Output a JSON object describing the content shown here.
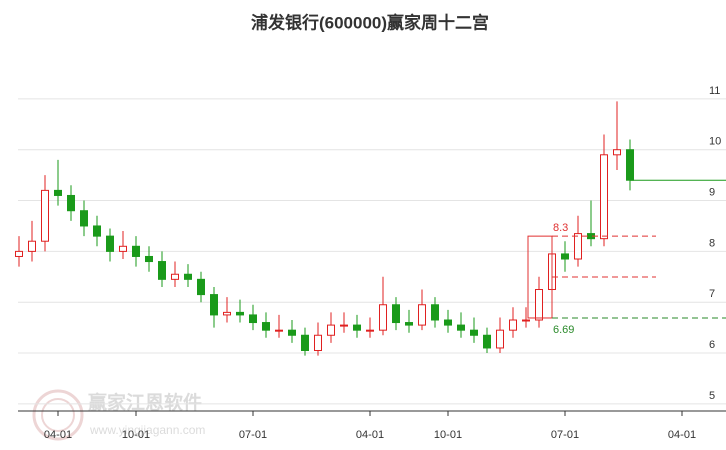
{
  "chart_data": {
    "type": "candlestick",
    "title": "浦发银行(600000)赢家周十二宫",
    "categories": [
      null,
      null,
      null,
      "04-01",
      null,
      null,
      null,
      null,
      null,
      "10-01",
      null,
      null,
      null,
      null,
      null,
      null,
      null,
      null,
      "07-01",
      null,
      null,
      null,
      null,
      null,
      null,
      null,
      null,
      "04-01",
      null,
      null,
      null,
      null,
      null,
      "10-01",
      null,
      null,
      null,
      null,
      null,
      null,
      null,
      null,
      "07-01",
      null,
      null,
      null,
      null,
      null,
      null,
      null,
      null,
      "04-01"
    ],
    "open": [
      7.9,
      8.0,
      8.2,
      9.2,
      9.1,
      8.8,
      8.5,
      8.3,
      8.0,
      8.1,
      7.9,
      7.8,
      7.45,
      7.55,
      7.45,
      7.15,
      6.75,
      6.8,
      6.75,
      6.6,
      6.45,
      6.45,
      6.35,
      6.05,
      6.35,
      6.55,
      6.55,
      6.45,
      6.45,
      6.95,
      6.6,
      6.55,
      6.95,
      6.65,
      6.55,
      6.45,
      6.35,
      6.1,
      6.45,
      6.65,
      6.65,
      7.25,
      7.95,
      7.85,
      8.35,
      8.25,
      9.9,
      10.0,
      null,
      null,
      null,
      null
    ],
    "high": [
      8.3,
      8.6,
      9.5,
      9.8,
      9.3,
      9.0,
      8.7,
      8.45,
      8.4,
      8.3,
      8.1,
      8.0,
      7.8,
      7.75,
      7.6,
      7.3,
      7.1,
      7.05,
      6.95,
      6.8,
      6.75,
      6.65,
      6.5,
      6.6,
      6.8,
      6.8,
      6.75,
      6.7,
      7.5,
      7.1,
      6.85,
      7.25,
      7.1,
      6.85,
      6.8,
      6.7,
      6.5,
      6.7,
      6.9,
      6.9,
      7.5,
      8.3,
      8.2,
      8.7,
      9.0,
      10.3,
      10.95,
      10.2,
      null,
      null,
      null,
      null
    ],
    "low": [
      7.7,
      7.8,
      8.0,
      8.9,
      8.6,
      8.3,
      8.1,
      7.8,
      7.85,
      7.7,
      7.6,
      7.3,
      7.3,
      7.3,
      7.0,
      6.5,
      6.6,
      6.6,
      6.45,
      6.3,
      6.3,
      6.2,
      5.95,
      5.95,
      6.2,
      6.4,
      6.3,
      6.3,
      6.35,
      6.45,
      6.4,
      6.45,
      6.5,
      6.4,
      6.3,
      6.2,
      6.0,
      6.0,
      6.3,
      6.5,
      6.5,
      7.1,
      7.6,
      7.7,
      8.1,
      8.1,
      9.6,
      9.2,
      null,
      null,
      null,
      null
    ],
    "close": [
      8.0,
      8.2,
      9.2,
      9.1,
      8.8,
      8.5,
      8.3,
      8.0,
      8.1,
      7.9,
      7.8,
      7.45,
      7.55,
      7.45,
      7.15,
      6.75,
      6.8,
      6.75,
      6.6,
      6.45,
      6.45,
      6.35,
      6.05,
      6.35,
      6.55,
      6.55,
      6.45,
      6.45,
      6.95,
      6.6,
      6.55,
      6.95,
      6.65,
      6.55,
      6.45,
      6.35,
      6.1,
      6.45,
      6.65,
      6.65,
      7.25,
      7.95,
      7.85,
      8.35,
      8.25,
      9.9,
      10.0,
      9.4,
      null,
      null,
      null,
      null
    ],
    "up_color": "#e02020",
    "down_color": "#1a9a1a",
    "ylim": [
      4.86,
      12.06
    ],
    "yticks": [
      5,
      6,
      7,
      8,
      9,
      10,
      11
    ],
    "grid": true,
    "levels": [
      {
        "value": 8.3,
        "label": "8.3",
        "color": "#e03030"
      },
      {
        "value": 6.69,
        "label": "6.69",
        "color": "#2a8a2a"
      }
    ],
    "watermark": {
      "text": "赢家江恩软件",
      "url": "www.yingjiagann.com"
    }
  }
}
